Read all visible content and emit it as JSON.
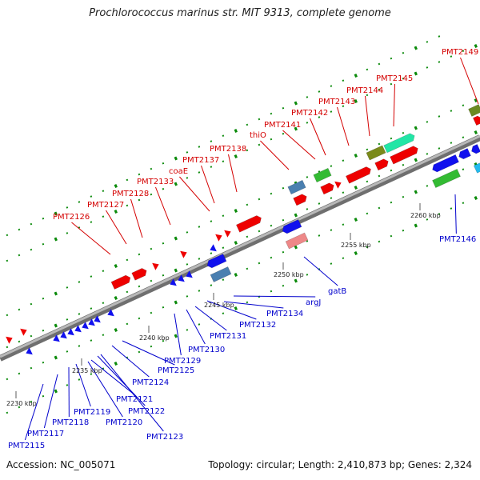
{
  "title": "Prochlorococcus marinus str. MIT 9313, complete genome",
  "footer": {
    "accession": "Accession: NC_005071",
    "summary": "Topology: circular; Length: 2,410,873 bp; Genes: 2,324"
  },
  "colors": {
    "forward_label": "#d40000",
    "reverse_label": "#0000cc",
    "backbone": "#8a8a8a",
    "tick": "#0a8a0a"
  },
  "scale": {
    "ticks": [
      "2230 kbp",
      "2235 kbp",
      "2240 kbp",
      "2245 kbp",
      "2250 kbp",
      "2255 kbp",
      "2260 kbp"
    ]
  },
  "forward_genes": [
    "PMT2126",
    "PMT2127",
    "PMT2128",
    "PMT2133",
    "coaE",
    "PMT2137",
    "PMT2138",
    "thiO",
    "PMT2141",
    "PMT2142",
    "PMT2143",
    "PMT2144",
    "PMT2145",
    "PMT2149"
  ],
  "reverse_genes": [
    "PMT2115",
    "PMT2117",
    "PMT2118",
    "PMT2119",
    "PMT2120",
    "PMT2121",
    "PMT2122",
    "PMT2123",
    "PMT2124",
    "PMT2125",
    "PMT2129",
    "PMT2130",
    "PMT2131",
    "PMT2132",
    "PMT2134",
    "argJ",
    "gatB",
    "PMT2146"
  ]
}
